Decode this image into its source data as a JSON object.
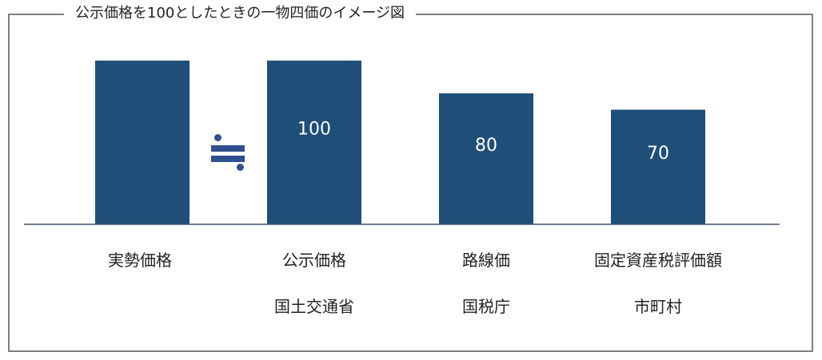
{
  "title": "公示価格を100としたときの一物四価のイメージ図",
  "approx_symbol": "≒",
  "colors": {
    "bar": "#1f4e79",
    "symbol": "#2f4f8f",
    "baseline": "#44546a",
    "frame": "#7f7f7f"
  },
  "chart_data": {
    "type": "bar",
    "categories": [
      "実勢価格",
      "公示価格",
      "路線価",
      "固定資産税評価額"
    ],
    "subcategories": [
      "",
      "国土交通省",
      "国税庁",
      "市町村"
    ],
    "values": [
      null,
      100,
      80,
      70
    ],
    "data_labels": [
      "",
      "100",
      "80",
      "70"
    ],
    "ylim": [
      0,
      137
    ],
    "grid": false,
    "notes": "実勢価格 bar drawn to the same height as 公示価格 with no label; the two are approximately equal"
  }
}
